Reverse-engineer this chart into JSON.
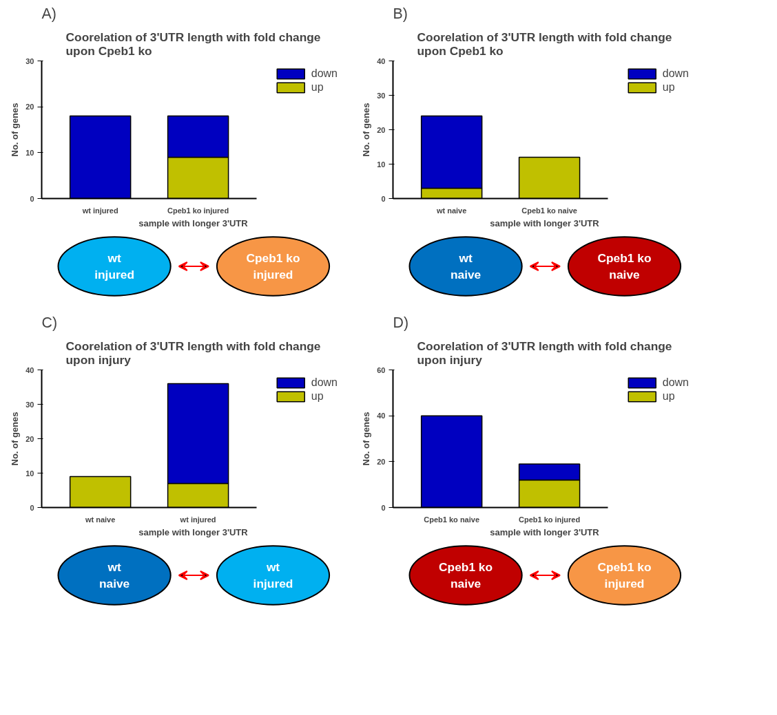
{
  "chart_data": [
    {
      "type": "bar",
      "title": "Coorelation of 3'UTR length with fold change upon Cpeb1 ko",
      "xlabel": "sample with longer 3'UTR",
      "ylabel": "No. of genes",
      "categories": [
        "wt injured",
        "Cpeb1 ko injured"
      ],
      "stacked": true,
      "legend": "top right",
      "grid": false,
      "ylim": [
        0,
        30
      ],
      "yticks": [
        0,
        10,
        20,
        30
      ],
      "series": [
        {
          "name": "up",
          "color": "#c0c000",
          "values": [
            0,
            9
          ]
        },
        {
          "name": "down",
          "color": "#0000c0",
          "values": [
            18,
            9
          ]
        }
      ],
      "annotations": [
        "A)",
        "wt injured",
        "Cpeb1 ko injured"
      ]
    },
    {
      "type": "bar",
      "title": "Coorelation of 3'UTR length with fold change upon Cpeb1 ko",
      "xlabel": "sample with longer 3'UTR",
      "ylabel": "No. of genes",
      "categories": [
        "wt naive",
        "Cpeb1 ko naive"
      ],
      "stacked": true,
      "legend": "top right",
      "grid": false,
      "ylim": [
        0,
        40
      ],
      "yticks": [
        0,
        10,
        20,
        30,
        40
      ],
      "series": [
        {
          "name": "up",
          "color": "#c0c000",
          "values": [
            3,
            12
          ]
        },
        {
          "name": "down",
          "color": "#0000c0",
          "values": [
            21,
            0
          ]
        }
      ],
      "annotations": [
        "B)",
        "wt naive",
        "Cpeb1 ko naive"
      ]
    },
    {
      "type": "bar",
      "title": "Coorelation of 3'UTR length with fold change upon injury",
      "xlabel": "sample with longer 3'UTR",
      "ylabel": "No. of genes",
      "categories": [
        "wt naive",
        "wt injured"
      ],
      "stacked": true,
      "legend": "top right",
      "grid": false,
      "ylim": [
        0,
        40
      ],
      "yticks": [
        0,
        10,
        20,
        30,
        40
      ],
      "series": [
        {
          "name": "up",
          "color": "#c0c000",
          "values": [
            9,
            7
          ]
        },
        {
          "name": "down",
          "color": "#0000c0",
          "values": [
            0,
            29
          ]
        }
      ],
      "annotations": [
        "C)",
        "wt naive",
        "wt injured"
      ]
    },
    {
      "type": "bar",
      "title": "Coorelation of 3'UTR length with fold change upon injury",
      "xlabel": "sample with longer 3'UTR",
      "ylabel": "No. of genes",
      "categories": [
        "Cpeb1 ko naive",
        "Cpeb1 ko injured"
      ],
      "stacked": true,
      "legend": "top right",
      "grid": false,
      "ylim": [
        0,
        60
      ],
      "yticks": [
        0,
        20,
        40,
        60
      ],
      "series": [
        {
          "name": "up",
          "color": "#c0c000",
          "values": [
            0,
            12
          ]
        },
        {
          "name": "down",
          "color": "#0000c0",
          "values": [
            40,
            7
          ]
        }
      ],
      "annotations": [
        "D)",
        "Cpeb1 ko naive",
        "Cpeb1 ko injured"
      ]
    }
  ]
}
